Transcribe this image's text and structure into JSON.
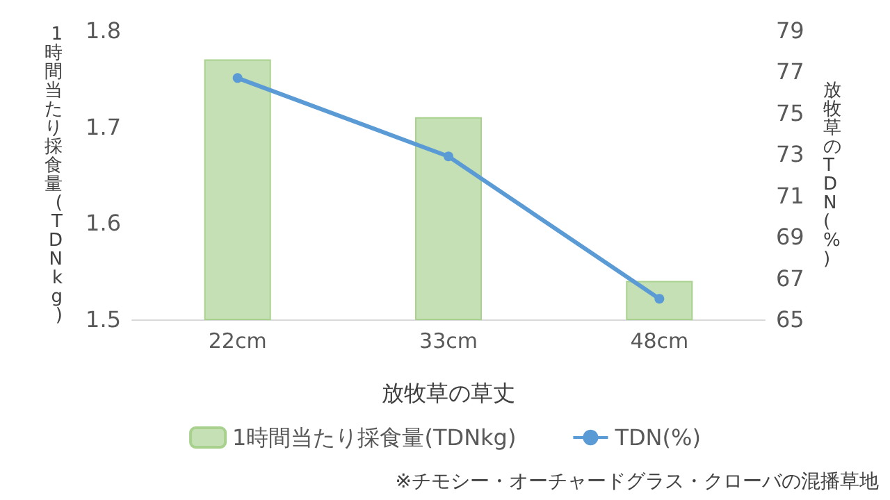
{
  "chart_data": {
    "type": "bar",
    "categories": [
      "22cm",
      "33cm",
      "48cm"
    ],
    "xlabel": "放牧草の草丈",
    "ylabel": "1時間当たり採食量(TDNkg)",
    "y2label": "放牧草のTDN(%)",
    "series": [
      {
        "name": "1時間当たり採食量(TDNkg)",
        "color": "#c5e0b4",
        "values": [
          1.77,
          1.71,
          1.54
        ]
      },
      {
        "name": "TDN(%)",
        "type": "line",
        "axis": "y2",
        "color": "#5b9bd5",
        "values": [
          76.7,
          72.9,
          66.0
        ]
      }
    ],
    "ylim": [
      1.5,
      1.8
    ],
    "yticks": [
      1.5,
      1.6,
      1.7,
      1.8
    ],
    "y2lim": [
      65,
      79
    ],
    "y2ticks": [
      65,
      67,
      69,
      71,
      73,
      75,
      77,
      79
    ],
    "marker": "circle",
    "grid": false,
    "legend": "bottom",
    "annotations": [
      "※チモシー・オーチャードグラス・クローバの混播草地"
    ]
  }
}
